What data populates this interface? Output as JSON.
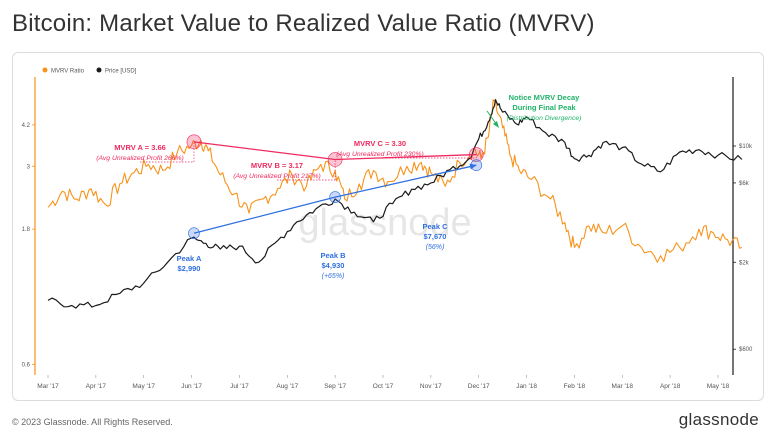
{
  "title": "Bitcoin: Market Value to Realized Value Ratio (MVRV)",
  "footer": {
    "copyright": "© 2023 Glassnode. All Rights Reserved.",
    "brand": "glassnode"
  },
  "watermark": "glassnode",
  "colors": {
    "mvrv": "#f7931a",
    "price": "#1a1a1a",
    "red": "#ee2a5f",
    "blue": "#2f6fe0",
    "green": "#21b26a"
  },
  "chart_data": {
    "type": "line",
    "title": "Bitcoin: Market Value to Realized Value Ratio (MVRV)",
    "legend": [
      {
        "name": "MVRV Ratio",
        "color": "#f7931a"
      },
      {
        "name": "Price [USD]",
        "color": "#1a1a1a"
      }
    ],
    "x_ticks": [
      "Mar '17",
      "Apr '17",
      "May '17",
      "Jun '17",
      "Jul '17",
      "Aug '17",
      "Sep '17",
      "Oct '17",
      "Nov '17",
      "Dec '17",
      "Jan '18",
      "Feb '18",
      "Mar '18",
      "Apr '18",
      "May '18"
    ],
    "left_axis": {
      "label": "MVRV Ratio",
      "scale": "log",
      "range": [
        0.55,
        6.2
      ],
      "ticks": [
        0.6,
        1.8,
        3,
        4.2
      ]
    },
    "right_axis": {
      "label": "Price [USD]",
      "scale": "log",
      "range": [
        420,
        26000
      ],
      "ticks": [
        {
          "value": 600,
          "label": "$600"
        },
        {
          "value": 2000,
          "label": "$2k"
        },
        {
          "value": 6000,
          "label": "$6k"
        },
        {
          "value": 10000,
          "label": "$10k"
        }
      ]
    },
    "series": [
      {
        "name": "MVRV Ratio",
        "axis": "left",
        "color": "#f7931a",
        "points": [
          [
            0,
            2.15
          ],
          [
            0.3,
            2.45
          ],
          [
            0.6,
            2.3
          ],
          [
            0.9,
            2.5
          ],
          [
            1.2,
            2.2
          ],
          [
            1.5,
            2.6
          ],
          [
            1.8,
            2.85
          ],
          [
            2.1,
            3.05
          ],
          [
            2.4,
            2.9
          ],
          [
            2.7,
            3.35
          ],
          [
            3.0,
            3.55
          ],
          [
            3.2,
            3.7
          ],
          [
            3.35,
            3.4
          ],
          [
            3.6,
            2.8
          ],
          [
            3.9,
            2.4
          ],
          [
            4.2,
            2.05
          ],
          [
            4.5,
            2.3
          ],
          [
            4.8,
            2.5
          ],
          [
            5.1,
            2.8
          ],
          [
            5.4,
            2.55
          ],
          [
            5.7,
            3.05
          ],
          [
            6.0,
            2.9
          ],
          [
            6.2,
            2.3
          ],
          [
            6.5,
            2.6
          ],
          [
            6.8,
            2.9
          ],
          [
            7.1,
            2.65
          ],
          [
            7.5,
            3.0
          ],
          [
            7.8,
            3.1
          ],
          [
            8.0,
            2.85
          ],
          [
            8.3,
            2.55
          ],
          [
            8.6,
            3.1
          ],
          [
            8.9,
            3.45
          ],
          [
            9.05,
            3.2
          ],
          [
            9.2,
            3.8
          ],
          [
            9.32,
            5.1
          ],
          [
            9.5,
            4.1
          ],
          [
            9.65,
            3.3
          ],
          [
            9.85,
            2.9
          ],
          [
            10.1,
            2.7
          ],
          [
            10.5,
            2.3
          ],
          [
            10.8,
            1.9
          ],
          [
            11.0,
            1.55
          ],
          [
            11.3,
            1.85
          ],
          [
            11.6,
            1.75
          ],
          [
            12.0,
            1.85
          ],
          [
            12.4,
            1.55
          ],
          [
            12.8,
            1.45
          ],
          [
            13.2,
            1.55
          ],
          [
            13.6,
            1.8
          ],
          [
            13.9,
            1.75
          ],
          [
            14.2,
            1.65
          ],
          [
            14.5,
            1.55
          ]
        ]
      },
      {
        "name": "Price [USD]",
        "axis": "right",
        "color": "#1a1a1a",
        "points": [
          [
            0,
            1180
          ],
          [
            0.5,
            1100
          ],
          [
            1.0,
            1100
          ],
          [
            1.5,
            1300
          ],
          [
            2.0,
            1500
          ],
          [
            2.5,
            2000
          ],
          [
            3.0,
            2800
          ],
          [
            3.3,
            2600
          ],
          [
            3.6,
            2400
          ],
          [
            4.0,
            2500
          ],
          [
            4.4,
            2000
          ],
          [
            4.8,
            2700
          ],
          [
            5.2,
            3500
          ],
          [
            5.6,
            4200
          ],
          [
            6.0,
            4800
          ],
          [
            6.4,
            4000
          ],
          [
            6.8,
            3500
          ],
          [
            7.2,
            4500
          ],
          [
            7.6,
            5500
          ],
          [
            8.0,
            6000
          ],
          [
            8.4,
            7200
          ],
          [
            8.8,
            8400
          ],
          [
            9.0,
            11000
          ],
          [
            9.2,
            14000
          ],
          [
            9.35,
            19000
          ],
          [
            9.5,
            16000
          ],
          [
            9.8,
            13500
          ],
          [
            10.0,
            15000
          ],
          [
            10.4,
            12000
          ],
          [
            10.8,
            10500
          ],
          [
            11.0,
            8400
          ],
          [
            11.3,
            8800
          ],
          [
            11.6,
            10500
          ],
          [
            12.0,
            9800
          ],
          [
            12.4,
            7800
          ],
          [
            12.8,
            7000
          ],
          [
            13.2,
            9200
          ],
          [
            13.6,
            9500
          ],
          [
            14.0,
            8800
          ],
          [
            14.5,
            8300
          ]
        ]
      }
    ],
    "markers": {
      "mvrv_peaks": [
        {
          "x": 3.05,
          "y": 3.66
        },
        {
          "x": 6.0,
          "y": 3.17
        },
        {
          "x": 8.95,
          "y": 3.3
        }
      ],
      "price_peaks": [
        {
          "x": 3.05,
          "usd": 2990
        },
        {
          "x": 6.0,
          "usd": 4930
        },
        {
          "x": 8.95,
          "usd": 7670
        }
      ]
    },
    "annotations": {
      "mvrv_a": {
        "title": "MVRV A = 3.66",
        "sub": "(Avg Unrealized Profit 266%)"
      },
      "mvrv_b": {
        "title": "MVRV B = 3.17",
        "sub": "(Avg Unrealized Profit 217%)"
      },
      "mvrv_c": {
        "title": "MVRV C = 3.30",
        "sub": "(Avg Unrealized Profit 230%)"
      },
      "peak_a": {
        "label": "Peak A",
        "value": "$2,990"
      },
      "peak_b": {
        "label": "Peak B",
        "value": "$4,930",
        "change": "(+65%)"
      },
      "peak_c": {
        "label": "Peak C",
        "value": "$7,670",
        "change": "(56%)"
      },
      "decay": {
        "line1": "Notice MVRV Decay",
        "line2": "During Final Peak",
        "sub": "(Distribution Divergence)"
      }
    }
  }
}
